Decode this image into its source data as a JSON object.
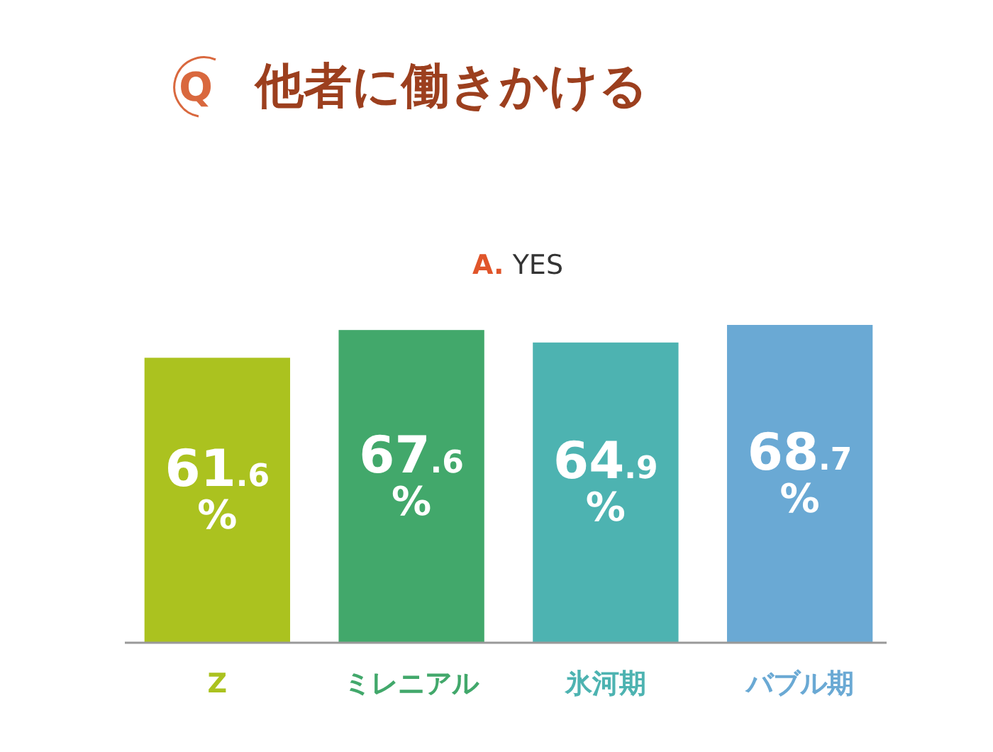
{
  "chart_data": {
    "type": "bar",
    "title": "他者に働きかける",
    "subtitle": "A. YES",
    "annotations": [
      "Q"
    ],
    "categories": [
      "Z",
      "ミレニアル",
      "氷河期",
      "バブル期"
    ],
    "values": [
      61.6,
      67.6,
      64.9,
      68.7
    ],
    "colors": [
      "#abc21f",
      "#42a86b",
      "#4db3b1",
      "#6aa9d4"
    ],
    "value_labels": [
      "61.6%",
      "67.6%",
      "64.9%",
      "68.7%"
    ]
  }
}
